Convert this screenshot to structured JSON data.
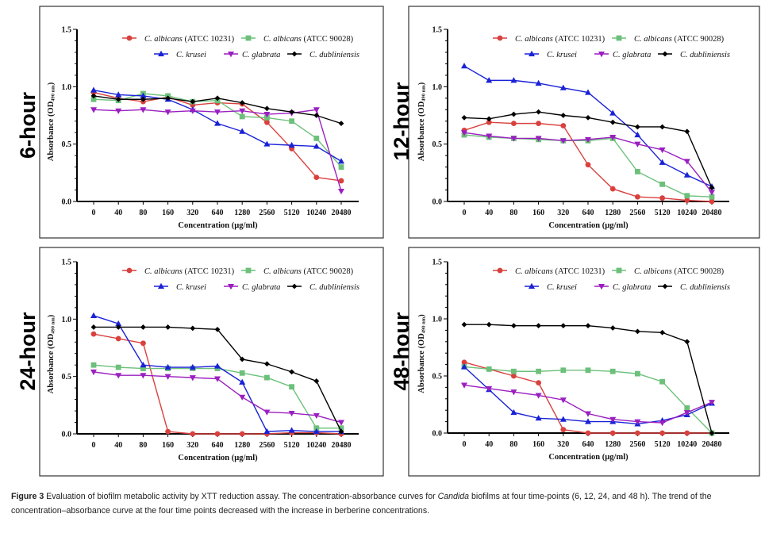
{
  "figure": {
    "caption": {
      "label": "Figure 3",
      "part1": " Evaluation of biofilm metabolic activity by XTT reduction assay. The concentration-absorbance curves for ",
      "italic": "Candida",
      "part2": " biofilms at four time-points (6, 12, 24, and 48 h). The trend of the concentration–absorbance curve at the four time points decreased with the increase in berberine concentrations."
    }
  },
  "chart_data": [
    {
      "type": "line",
      "title": "6-hour",
      "xlabel": "Concentration (µg/ml)",
      "ylabel_main": "Absorbance (OD",
      "ylabel_sub": "490 nm",
      "ylabel_end": ")",
      "ylim": [
        0,
        1.5
      ],
      "yticks": [
        "0.0",
        "0.5",
        "1.0",
        "1.5"
      ],
      "categories": [
        "0",
        "40",
        "80",
        "160",
        "320",
        "640",
        "1280",
        "2560",
        "5120",
        "10240",
        "20480"
      ],
      "legend": "top-right",
      "series": [
        {
          "name_italic": "C. albicans",
          "name_suffix": " (ATCC 10231)",
          "color": "#d9413e",
          "marker": "circle",
          "values": [
            0.95,
            0.9,
            0.87,
            0.91,
            0.84,
            0.86,
            0.85,
            0.69,
            0.46,
            0.21,
            0.18
          ]
        },
        {
          "name_italic": "C. albicans",
          "name_suffix": " (ATCC 90028)",
          "color": "#6cc07a",
          "marker": "square",
          "values": [
            0.89,
            0.88,
            0.94,
            0.92,
            0.87,
            0.88,
            0.74,
            0.73,
            0.7,
            0.55,
            0.3
          ]
        },
        {
          "name_italic": "C. krusei",
          "name_suffix": "",
          "color": "#1a22d6",
          "marker": "triangle-up",
          "values": [
            0.97,
            0.93,
            0.92,
            0.89,
            0.8,
            0.68,
            0.61,
            0.5,
            0.49,
            0.48,
            0.35
          ]
        },
        {
          "name_italic": "C. glabrata",
          "name_suffix": "",
          "color": "#9b1fc0",
          "marker": "triangle-down",
          "values": [
            0.8,
            0.79,
            0.8,
            0.78,
            0.79,
            0.78,
            0.79,
            0.76,
            0.77,
            0.8,
            0.09
          ]
        },
        {
          "name_italic": "C. dubliniensis",
          "name_suffix": "",
          "color": "#000000",
          "marker": "diamond",
          "values": [
            0.92,
            0.89,
            0.89,
            0.9,
            0.87,
            0.9,
            0.86,
            0.81,
            0.78,
            0.75,
            0.68
          ]
        }
      ]
    },
    {
      "type": "line",
      "title": "12-hour",
      "xlabel": "Concentration (µg/ml)",
      "ylabel_main": "Absorbance (OD",
      "ylabel_sub": "490 nm",
      "ylabel_end": ")",
      "ylim": [
        0,
        1.5
      ],
      "yticks": [
        "0.0",
        "0.5",
        "1.0",
        "1.5"
      ],
      "categories": [
        "0",
        "40",
        "80",
        "160",
        "320",
        "640",
        "1280",
        "2560",
        "5120",
        "10240",
        "20480"
      ],
      "legend": "top-right",
      "series": [
        {
          "name_italic": "C. albicans",
          "name_suffix": " (ATCC 10231)",
          "color": "#d9413e",
          "marker": "circle",
          "values": [
            0.62,
            0.69,
            0.68,
            0.68,
            0.66,
            0.32,
            0.11,
            0.04,
            0.03,
            0.01,
            0.0
          ]
        },
        {
          "name_italic": "C. albicans",
          "name_suffix": " (ATCC 90028)",
          "color": "#6cc07a",
          "marker": "square",
          "values": [
            0.58,
            0.56,
            0.55,
            0.54,
            0.53,
            0.53,
            0.55,
            0.26,
            0.15,
            0.05,
            0.04
          ]
        },
        {
          "name_italic": "C. krusei",
          "name_suffix": "",
          "color": "#1a22d6",
          "marker": "triangle-up",
          "values": [
            1.18,
            1.055,
            1.055,
            1.03,
            0.99,
            0.95,
            0.77,
            0.58,
            0.34,
            0.23,
            0.13
          ]
        },
        {
          "name_italic": "C. glabrata",
          "name_suffix": "",
          "color": "#9b1fc0",
          "marker": "triangle-down",
          "values": [
            0.6,
            0.57,
            0.55,
            0.55,
            0.53,
            0.54,
            0.56,
            0.5,
            0.45,
            0.35,
            0.08
          ]
        },
        {
          "name_italic": "C. dubliniensis",
          "name_suffix": "",
          "color": "#000000",
          "marker": "diamond",
          "values": [
            0.73,
            0.72,
            0.76,
            0.78,
            0.75,
            0.73,
            0.69,
            0.65,
            0.65,
            0.61,
            0.12
          ]
        }
      ]
    },
    {
      "type": "line",
      "title": "24-hour",
      "xlabel": "Concentration (µg/ml)",
      "ylabel_main": "Absorbance (OD",
      "ylabel_sub": "490 nm",
      "ylabel_end": ")",
      "ylim": [
        0,
        1.5
      ],
      "yticks": [
        "0.0",
        "0.5",
        "1.0",
        "1.5"
      ],
      "categories": [
        "0",
        "40",
        "80",
        "160",
        "320",
        "640",
        "1280",
        "2560",
        "5120",
        "10240",
        "20480"
      ],
      "legend": "top-right",
      "series": [
        {
          "name_italic": "C. albicans",
          "name_suffix": " (ATCC 10231)",
          "color": "#d9413e",
          "marker": "circle",
          "values": [
            0.87,
            0.83,
            0.79,
            0.02,
            0.0,
            0.0,
            0.0,
            0.0,
            0.01,
            0.01,
            0.0
          ]
        },
        {
          "name_italic": "C. albicans",
          "name_suffix": " (ATCC 90028)",
          "color": "#6cc07a",
          "marker": "square",
          "values": [
            0.6,
            0.58,
            0.57,
            0.57,
            0.57,
            0.57,
            0.53,
            0.49,
            0.41,
            0.05,
            0.05
          ]
        },
        {
          "name_italic": "C. krusei",
          "name_suffix": "",
          "color": "#1a22d6",
          "marker": "triangle-up",
          "values": [
            1.03,
            0.96,
            0.6,
            0.58,
            0.58,
            0.59,
            0.45,
            0.02,
            0.03,
            0.02,
            0.02
          ]
        },
        {
          "name_italic": "C. glabrata",
          "name_suffix": "",
          "color": "#9b1fc0",
          "marker": "triangle-down",
          "values": [
            0.54,
            0.51,
            0.51,
            0.5,
            0.49,
            0.48,
            0.32,
            0.19,
            0.18,
            0.16,
            0.1
          ]
        },
        {
          "name_italic": "C. dubliniensis",
          "name_suffix": "",
          "color": "#000000",
          "marker": "diamond",
          "values": [
            0.93,
            0.93,
            0.93,
            0.93,
            0.92,
            0.91,
            0.65,
            0.61,
            0.54,
            0.46,
            0.02
          ]
        }
      ]
    },
    {
      "type": "line",
      "title": "48-hour",
      "xlabel": "Concentration (µg/ml)",
      "ylabel_main": "Absorbance (OD",
      "ylabel_sub": "490 nm",
      "ylabel_end": ")",
      "ylim": [
        0,
        1.5
      ],
      "yticks": [
        "0.0",
        "0.5",
        "1.0",
        "1.5"
      ],
      "categories": [
        "0",
        "40",
        "80",
        "160",
        "320",
        "640",
        "1280",
        "2560",
        "5120",
        "10240",
        "20480"
      ],
      "legend": "top-right",
      "series": [
        {
          "name_italic": "C. albicans",
          "name_suffix": " (ATCC 10231)",
          "color": "#d9413e",
          "marker": "circle",
          "values": [
            0.62,
            0.56,
            0.5,
            0.44,
            0.03,
            0.0,
            0.0,
            0.0,
            0.0,
            0.0,
            0.0
          ]
        },
        {
          "name_italic": "C. albicans",
          "name_suffix": " (ATCC 90028)",
          "color": "#6cc07a",
          "marker": "square",
          "values": [
            0.58,
            0.56,
            0.54,
            0.54,
            0.55,
            0.55,
            0.54,
            0.52,
            0.45,
            0.22,
            0.0
          ]
        },
        {
          "name_italic": "C. krusei",
          "name_suffix": "",
          "color": "#1a22d6",
          "marker": "triangle-up",
          "values": [
            0.58,
            0.38,
            0.18,
            0.13,
            0.12,
            0.1,
            0.1,
            0.08,
            0.11,
            0.16,
            0.26
          ]
        },
        {
          "name_italic": "C. glabrata",
          "name_suffix": "",
          "color": "#9b1fc0",
          "marker": "triangle-down",
          "values": [
            0.42,
            0.39,
            0.36,
            0.33,
            0.29,
            0.17,
            0.12,
            0.1,
            0.09,
            0.18,
            0.27
          ]
        },
        {
          "name_italic": "C. dubliniensis",
          "name_suffix": "",
          "color": "#000000",
          "marker": "diamond",
          "values": [
            0.95,
            0.95,
            0.94,
            0.94,
            0.94,
            0.94,
            0.92,
            0.89,
            0.88,
            0.8,
            0.0
          ]
        }
      ]
    }
  ]
}
